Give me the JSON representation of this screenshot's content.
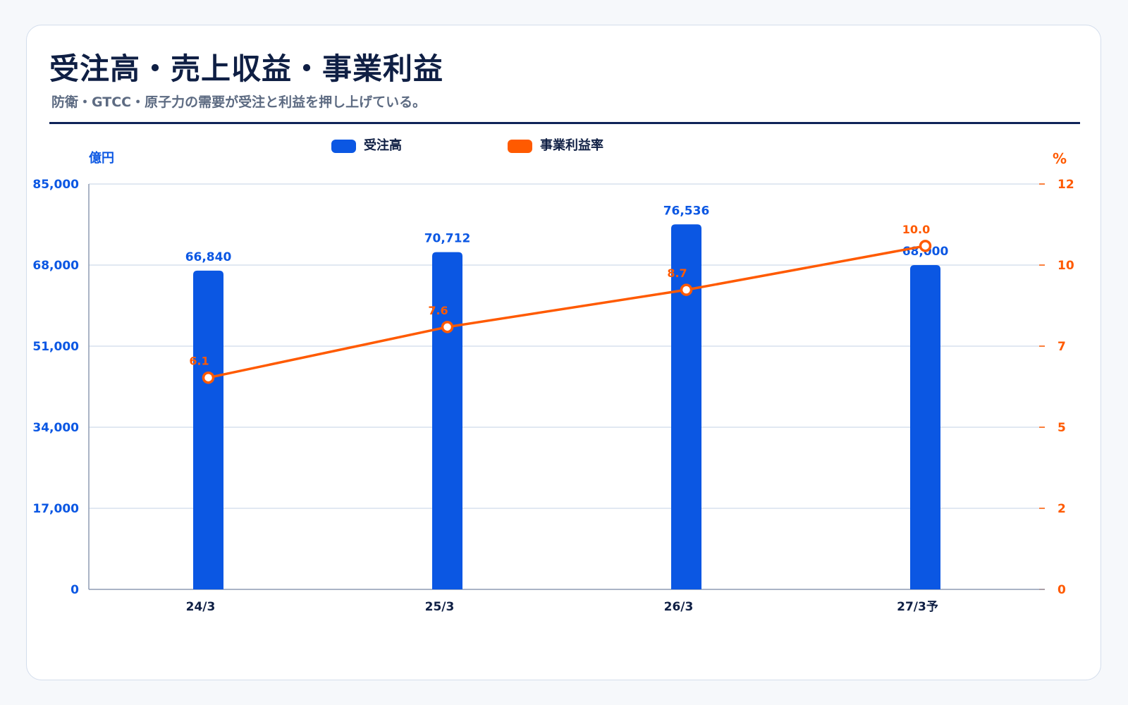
{
  "header": {
    "title": "受注高・売上収益・事業利益",
    "subtitle": "防衛・GTCC・原子力の需要が受注と利益を押し上げている。"
  },
  "chart_data": {
    "type": "bar",
    "categories": [
      "24/3",
      "25/3",
      "26/3",
      "27/3予"
    ],
    "series": [
      {
        "name": "受注高",
        "type": "bar",
        "axis": "left",
        "color": "#0b57e3",
        "values": [
          66840,
          70712,
          76536,
          68000
        ],
        "labels": [
          "66,840",
          "70,712",
          "76,536",
          "68,000"
        ]
      },
      {
        "name": "事業利益率",
        "type": "line",
        "axis": "right",
        "color": "#ff5a00",
        "values": [
          6.1,
          7.6,
          8.7,
          10.0
        ],
        "labels": [
          "6.1",
          "7.6",
          "8.7",
          "10.0"
        ]
      }
    ],
    "y_left": {
      "unit": "億円",
      "ylim": [
        0,
        85000
      ],
      "ticks": [
        0,
        17000,
        34000,
        51000,
        68000,
        85000
      ],
      "tick_labels": [
        "0",
        "17,000",
        "34,000",
        "51,000",
        "68,000",
        "85,000"
      ]
    },
    "y_right": {
      "unit": "%",
      "ylim": [
        0,
        12
      ],
      "tick_labels": [
        "0",
        "2",
        "5",
        "7",
        "10",
        "12"
      ]
    },
    "grid": true,
    "legend": "top-center"
  }
}
